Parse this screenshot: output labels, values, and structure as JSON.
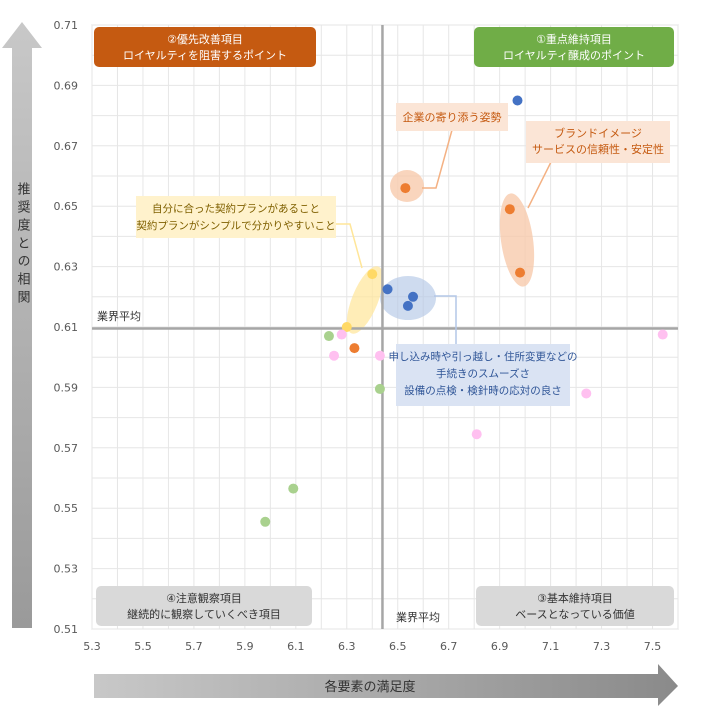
{
  "chart_data": {
    "type": "scatter",
    "title": "",
    "xlabel": "各要素の満足度",
    "ylabel": "推奨度との相関",
    "xlim": [
      5.3,
      7.6
    ],
    "ylim": [
      0.51,
      0.71
    ],
    "xticks": [
      "5.3",
      "5.5",
      "5.7",
      "5.9",
      "6.1",
      "6.3",
      "6.5",
      "6.7",
      "6.9",
      "7.1",
      "7.3",
      "7.5"
    ],
    "yticks": [
      "0.51",
      "0.53",
      "0.55",
      "0.57",
      "0.59",
      "0.61",
      "0.63",
      "0.65",
      "0.67",
      "0.69",
      "0.71"
    ],
    "grid": true,
    "avg_x": 6.44,
    "avg_y": 0.6095,
    "avg_x_label": "業界平均",
    "avg_y_label": "業界平均",
    "series": [
      {
        "name": "blue",
        "color": "#4472c4",
        "points": [
          [
            6.97,
            0.685
          ],
          [
            6.46,
            0.6225
          ],
          [
            6.56,
            0.62
          ],
          [
            6.54,
            0.617
          ]
        ]
      },
      {
        "name": "orange",
        "color": "#ed7d31",
        "points": [
          [
            6.53,
            0.656
          ],
          [
            6.94,
            0.649
          ],
          [
            6.98,
            0.628
          ],
          [
            6.33,
            0.603
          ]
        ]
      },
      {
        "name": "yellow",
        "color": "#ffd966",
        "points": [
          [
            6.4,
            0.6275
          ],
          [
            6.3,
            0.61
          ]
        ]
      },
      {
        "name": "green",
        "color": "#a9d18e",
        "points": [
          [
            6.23,
            0.607
          ],
          [
            6.43,
            0.5895
          ],
          [
            6.09,
            0.5565
          ],
          [
            5.98,
            0.5455
          ]
        ]
      },
      {
        "name": "pink",
        "color": "#ffc0f0",
        "points": [
          [
            6.28,
            0.6075
          ],
          [
            6.25,
            0.6005
          ],
          [
            6.43,
            0.6005
          ],
          [
            6.81,
            0.5745
          ],
          [
            7.24,
            0.588
          ],
          [
            7.54,
            0.6075
          ]
        ]
      }
    ],
    "quadrants": {
      "q1": {
        "line1": "①重点維持項目",
        "line2": "ロイヤルティ醸成のポイント",
        "color": "#70ad47"
      },
      "q2": {
        "line1": "②優先改善項目",
        "line2": "ロイヤルティを阻害するポイント",
        "color": "#c55a11"
      },
      "q3": {
        "line1": "③基本維持項目",
        "line2": "ベースとなっている価値",
        "color": "#d9d9d9"
      },
      "q4": {
        "line1": "④注意観察項目",
        "line2": "継続的に観察していくべき項目",
        "color": "#d9d9d9"
      }
    },
    "annotations": {
      "kigyou": {
        "text": "企業の寄り添う姿勢",
        "color": "#ed7d31"
      },
      "brand": {
        "line1": "ブランドイメージ",
        "line2": "サービスの信頼性・安定性",
        "color": "#ed7d31"
      },
      "jibun": {
        "line1": "自分に合った契約プランがあること",
        "line2": "契約プランがシンプルで分かりやすいこと",
        "color": "#bf9000"
      },
      "mousikomi": {
        "line1": "申し込み時や引っ越し・住所変更などの",
        "line2": "手続きのスムーズさ",
        "line3": "設備の点検・検針時の応対の良さ",
        "color": "#2f5597"
      }
    }
  }
}
